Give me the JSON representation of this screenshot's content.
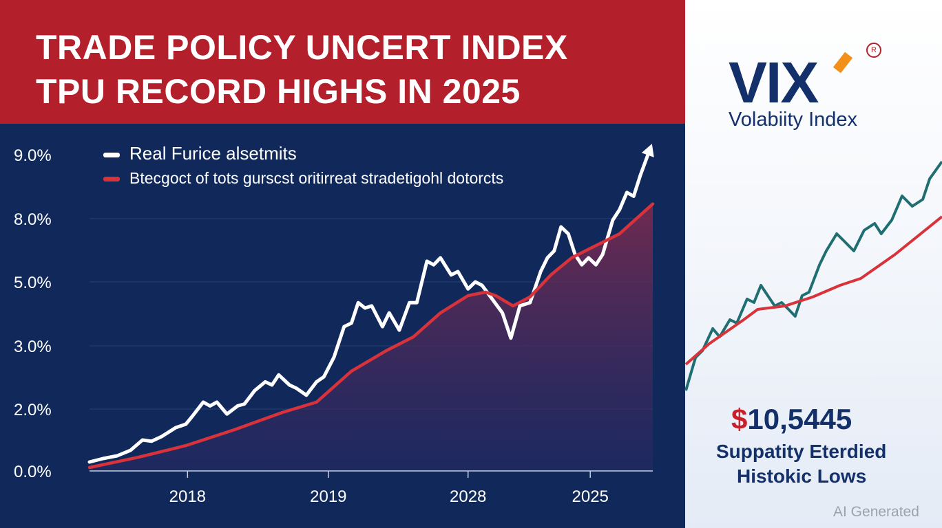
{
  "header": {
    "title_line1": "TRADE POLICY UNCERT INDEX",
    "title_line2": "TPU RECORD HIGHS IN 2025"
  },
  "side_panel": {
    "logo_text": "VIX",
    "logo_mark": "R",
    "logo_subtitle": "Volabiity Index",
    "price_currency": "$",
    "price_value": "10,5445",
    "caption_line1": "Suppatity Eterdied",
    "caption_line2": "Histokic Lows",
    "watermark": "AI Generated"
  },
  "colors": {
    "header_red": "#b3202b",
    "panel_navy": "#10285a",
    "white_series": "#ffffff",
    "red_series": "#d8323a",
    "teal_series": "#1f6e72",
    "logo_orange": "#f39019"
  },
  "chart_data": [
    {
      "type": "line",
      "title": "TRADE POLICY UNCERT INDEX",
      "xlabel": "",
      "ylabel": "",
      "x_domain": [
        0,
        100
      ],
      "x_ticks": [
        {
          "label": "2018",
          "at": 17.4
        },
        {
          "label": "2019",
          "at": 42.4
        },
        {
          "label": "2028",
          "at": 67.2
        },
        {
          "label": "2025",
          "at": 88.9
        }
      ],
      "y_ticks": [
        {
          "label": "0.0%",
          "value": 0
        },
        {
          "label": "2.0%",
          "value": 2
        },
        {
          "label": "3.0%",
          "value": 3
        },
        {
          "label": "5.0%",
          "value": 5
        },
        {
          "label": "8.0%",
          "value": 8
        },
        {
          "label": "9.0%",
          "value": 9
        }
      ],
      "grid": true,
      "legend_position": "top-left",
      "series": [
        {
          "name": "Real Furice alsetmits",
          "color": "#ffffff",
          "arrow": true,
          "x": [
            0,
            2.4,
            4.9,
            7.3,
            9.4,
            11.0,
            12.8,
            15.3,
            17.1,
            18.3,
            20.2,
            21.4,
            22.6,
            24.4,
            26.3,
            27.5,
            29.3,
            31.2,
            32.4,
            33.6,
            35.5,
            36.7,
            38.5,
            40.3,
            41.6,
            43.4,
            45.2,
            46.5,
            47.7,
            48.9,
            50.1,
            52.0,
            53.2,
            55.0,
            56.8,
            58.1,
            59.9,
            61.1,
            62.3,
            64.2,
            65.4,
            67.2,
            68.5,
            69.7,
            71.5,
            73.3,
            74.8,
            76.4,
            78.2,
            80.1,
            81.3,
            82.5,
            83.7,
            85.0,
            86.2,
            87.4,
            88.6,
            89.9,
            91.1,
            92.9,
            94.1,
            95.4,
            96.6,
            97.8,
            99.6
          ],
          "y": [
            0.29,
            0.4,
            0.49,
            0.67,
            1.0,
            0.96,
            1.11,
            1.4,
            1.51,
            1.78,
            2.11,
            2.05,
            2.11,
            1.84,
            2.05,
            2.08,
            2.29,
            2.43,
            2.38,
            2.54,
            2.38,
            2.33,
            2.22,
            2.43,
            2.51,
            2.82,
            3.6,
            3.71,
            4.35,
            4.18,
            4.25,
            3.6,
            4.03,
            3.49,
            4.35,
            4.35,
            5.98,
            5.81,
            6.14,
            5.33,
            5.49,
            4.78,
            5.0,
            4.89,
            4.46,
            4.03,
            3.24,
            4.25,
            4.35,
            5.49,
            6.14,
            6.47,
            7.61,
            7.28,
            6.3,
            5.81,
            6.14,
            5.81,
            6.3,
            7.93,
            8.14,
            8.41,
            8.35,
            8.68,
            9.11
          ]
        },
        {
          "name": "Btecgoct of tots gurscst oritirreat stradetigohl dotorcts",
          "color": "#d8323a",
          "area": true,
          "x": [
            0,
            8.6,
            17.1,
            25.7,
            34.2,
            40.3,
            46.5,
            52.6,
            57.5,
            62.3,
            67.2,
            70.3,
            72.1,
            75.2,
            78.2,
            81.9,
            85.6,
            89.2,
            94.1,
            100
          ],
          "y": [
            0.11,
            0.44,
            0.82,
            1.33,
            1.89,
            2.11,
            2.6,
            2.92,
            3.28,
            4.03,
            4.57,
            4.68,
            4.57,
            4.25,
            4.53,
            5.33,
            6.14,
            6.63,
            7.28,
            8.23
          ]
        }
      ]
    },
    {
      "type": "line",
      "title": "",
      "x_domain": [
        0,
        100
      ],
      "y_domain": [
        0,
        100
      ],
      "grid": false,
      "series": [
        {
          "name": "teal",
          "color": "#1f6e72",
          "x": [
            0,
            3.8,
            6.5,
            10.5,
            13.2,
            17.2,
            19.9,
            23.9,
            26.6,
            29.3,
            32,
            34.7,
            37.4,
            40.1,
            42.7,
            45.4,
            48.1,
            52.2,
            54.8,
            58.9,
            61.6,
            65.6,
            69.6,
            73.7,
            76.3,
            80.4,
            84.4,
            88.4,
            92.5,
            95.2,
            100
          ],
          "y": [
            8,
            20,
            22.5,
            30.5,
            27.5,
            33.75,
            32.5,
            41.25,
            40,
            46.25,
            42.5,
            38.75,
            40,
            37.5,
            35,
            42.5,
            43.75,
            53.75,
            58.75,
            65,
            62.5,
            58.75,
            66.25,
            68.75,
            65,
            70,
            78.75,
            75,
            77.5,
            85,
            91.25
          ]
        },
        {
          "name": "red",
          "color": "#d8323a",
          "x": [
            0,
            9.1,
            22.6,
            28,
            38.7,
            49.5,
            60.2,
            68.3,
            81.7,
            100
          ],
          "y": [
            17.5,
            25,
            33.75,
            37.5,
            38.75,
            42,
            46.25,
            48.75,
            57.5,
            71.25
          ]
        }
      ]
    }
  ]
}
